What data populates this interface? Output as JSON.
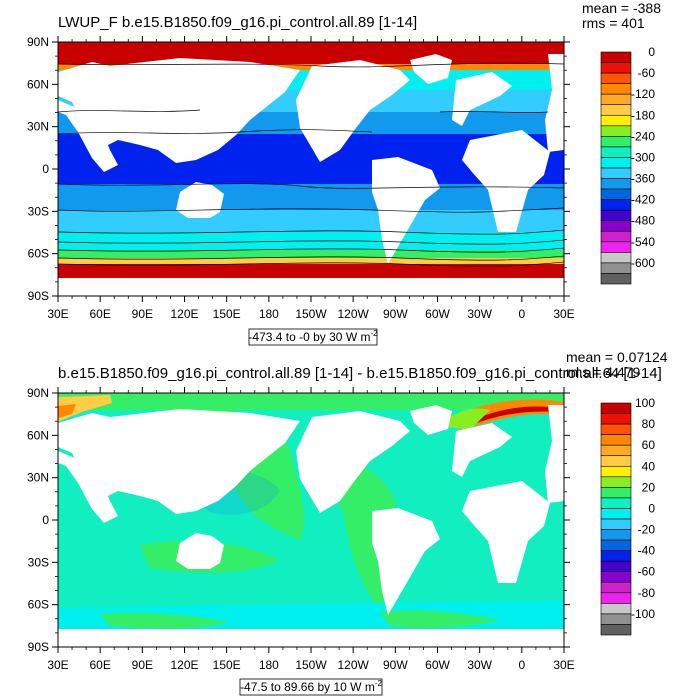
{
  "panels": [
    {
      "title": "LWUP_F b.e15.B1850.f09_g16.pi_control.all.89 [1-14]",
      "mean_text": "mean = -388",
      "rms_text": "rms = 401",
      "range_text": "-473.4 to -0 by 30",
      "units": "W m",
      "units_exp": "-2",
      "lat_ticks": [
        "90N",
        "60N",
        "30N",
        "0",
        "30S",
        "60S",
        "90S"
      ],
      "lon_ticks": [
        "30E",
        "60E",
        "90E",
        "120E",
        "150E",
        "180",
        "150W",
        "120W",
        "90W",
        "60W",
        "30W",
        "0",
        "30E"
      ],
      "colorbar": {
        "labels": [
          "0",
          "-60",
          "-120",
          "-180",
          "-240",
          "-300",
          "-360",
          "-420",
          "-480",
          "-540",
          "-600"
        ],
        "colors": [
          "#c80000",
          "#ee1100",
          "#ff5500",
          "#ff8800",
          "#ffaa22",
          "#ffcc44",
          "#fff000",
          "#88ee22",
          "#33ee66",
          "#11eec0",
          "#00f0f0",
          "#33ccff",
          "#1199ee",
          "#0066dd",
          "#0022ee",
          "#4400cc",
          "#8800cc",
          "#cc22cc",
          "#f022f0",
          "#c8c8c8",
          "#909090",
          "#606060"
        ]
      }
    },
    {
      "title": "b.e15.B1850.f09_g16.pi_control.all.89 [1-14] - b.e15.B1850.f09_g16.pi_control.all.64 [1-14]",
      "mean_text": "mean = 0.07124",
      "rms_text": "rms = 4.479",
      "range_text": "-47.5 to 89.66 by 10",
      "units": "W m",
      "units_exp": "-2",
      "lat_ticks": [
        "90N",
        "60N",
        "30N",
        "0",
        "30S",
        "60S",
        "90S"
      ],
      "lon_ticks": [
        "30E",
        "60E",
        "90E",
        "120E",
        "150E",
        "180",
        "150W",
        "120W",
        "90W",
        "60W",
        "30W",
        "0",
        "30E"
      ],
      "colorbar": {
        "labels": [
          "100",
          "80",
          "60",
          "40",
          "20",
          "0",
          "-20",
          "-40",
          "-60",
          "-80",
          "-100"
        ],
        "colors": [
          "#c80000",
          "#ee1100",
          "#ff5500",
          "#ff8800",
          "#ffaa22",
          "#ffcc44",
          "#fff000",
          "#88ee22",
          "#33ee66",
          "#11eec0",
          "#00f0f0",
          "#33ccff",
          "#1199ee",
          "#0066dd",
          "#0022ee",
          "#4400cc",
          "#8800cc",
          "#cc22cc",
          "#f022f0",
          "#c8c8c8",
          "#909090",
          "#606060"
        ]
      }
    }
  ]
}
